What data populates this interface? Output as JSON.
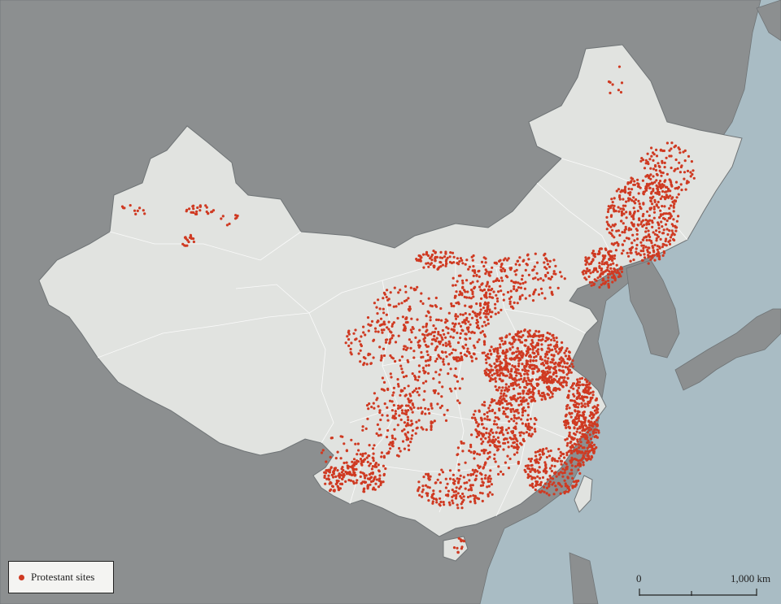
{
  "colors": {
    "sea": "#a9bcc4",
    "land_other": "#8c8f90",
    "china_fill": "#e1e3e0",
    "border": "#6f7476",
    "site_red": "#cf3a22"
  },
  "legend": {
    "label": "Protestant sites",
    "marker_color": "#cf3a22"
  },
  "scale_bar": {
    "start_label": "0",
    "end_label": "1,000 km"
  },
  "map_content": {
    "feature": "Protestant site locations across China, densest in eastern provinces"
  }
}
